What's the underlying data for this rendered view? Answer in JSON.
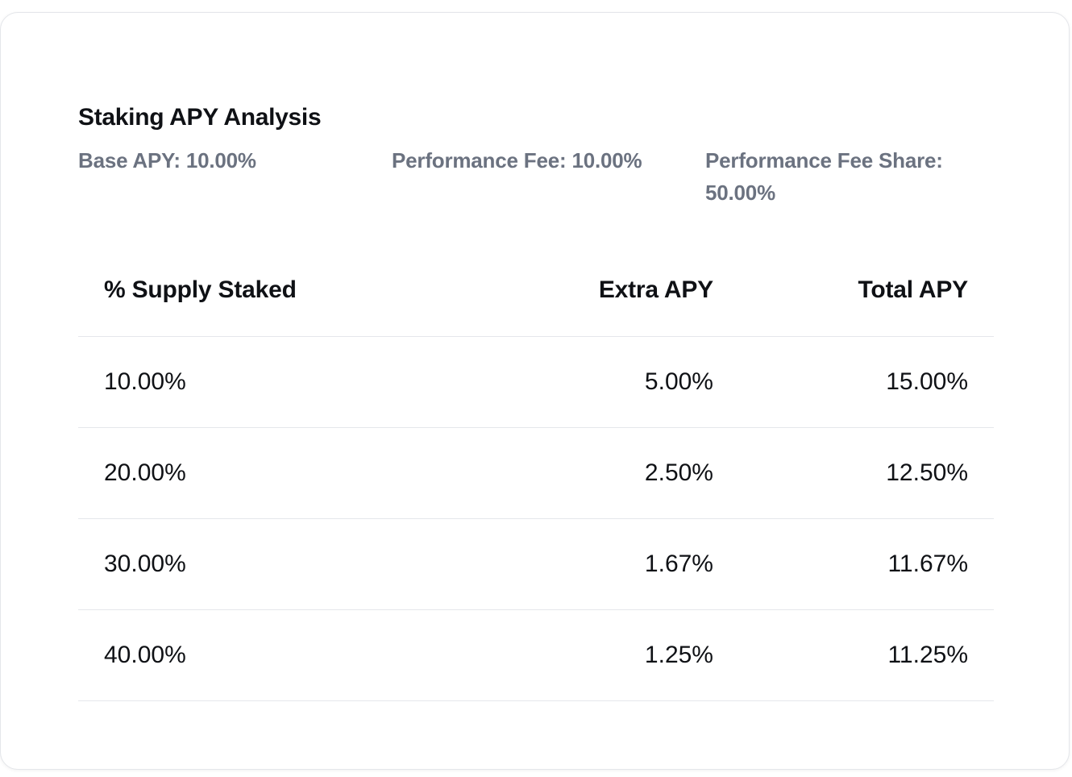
{
  "card": {
    "title": "Staking APY Analysis",
    "stats": [
      {
        "label": "Base APY:",
        "value": "10.00%"
      },
      {
        "label": "Performance Fee:",
        "value": "10.00%"
      },
      {
        "label": "Performance Fee Share:",
        "value": "50.00%"
      }
    ]
  },
  "table": {
    "headers": [
      "% Supply Staked",
      "Extra APY",
      "Total APY"
    ],
    "rows": [
      [
        "10.00%",
        "5.00%",
        "15.00%"
      ],
      [
        "20.00%",
        "2.50%",
        "12.50%"
      ],
      [
        "30.00%",
        "1.67%",
        "11.67%"
      ],
      [
        "40.00%",
        "1.25%",
        "11.25%"
      ]
    ]
  },
  "colors": {
    "text_primary": "#0f1115",
    "text_muted": "#6b7280",
    "divider": "#e5e7eb",
    "card_border": "#e4e6ea"
  }
}
